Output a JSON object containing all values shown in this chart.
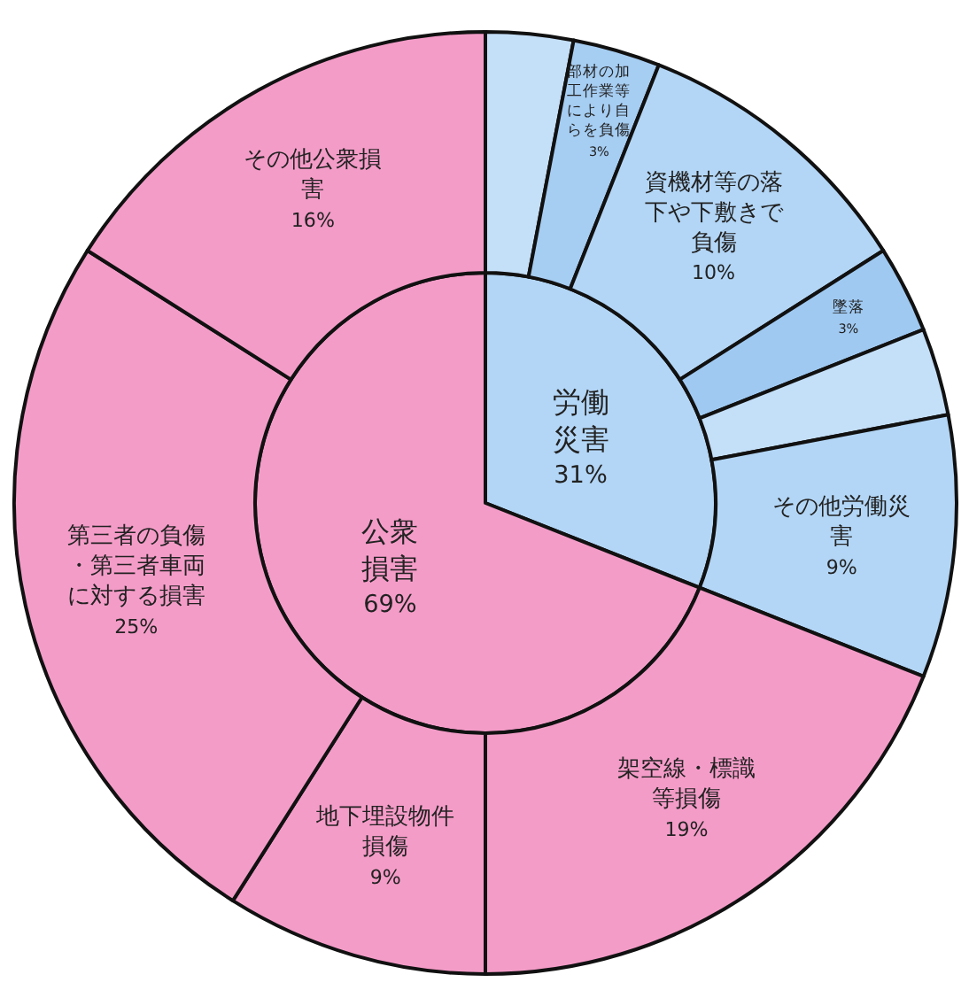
{
  "chart_data": [
    {
      "type": "pie",
      "categories": [
        "労働災害",
        "公衆損害"
      ],
      "values": [
        31,
        69
      ],
      "colors": [
        "#b3d6f6",
        "#f49cc8"
      ],
      "value_labels": [
        "31%",
        "69%"
      ]
    },
    {
      "type": "donut",
      "categories": [
        null,
        "部材の加工作業等により自らを負傷",
        "資機材等の落下や下敷きで負傷",
        "墜落",
        null,
        "その他労働災害",
        "架空線・標識等損傷",
        "地下埋設物件損傷",
        "第三者の負傷・第三者車両に対する損害",
        "その他公衆損害"
      ],
      "values": [
        3,
        3,
        10,
        3,
        3,
        9,
        19,
        9,
        25,
        16
      ],
      "colors": [
        "#c4dff8",
        "#a6cdf2",
        "#b3d6f6",
        "#9fc9f1",
        "#c4dff8",
        "#b3d6f6",
        "#f49cc8",
        "#f49cc8",
        "#f49cc8",
        "#f49cc8"
      ],
      "value_labels": [
        null,
        "3%",
        "10%",
        "3%",
        null,
        "9%",
        "19%",
        "9%",
        "25%",
        "16%"
      ]
    }
  ]
}
